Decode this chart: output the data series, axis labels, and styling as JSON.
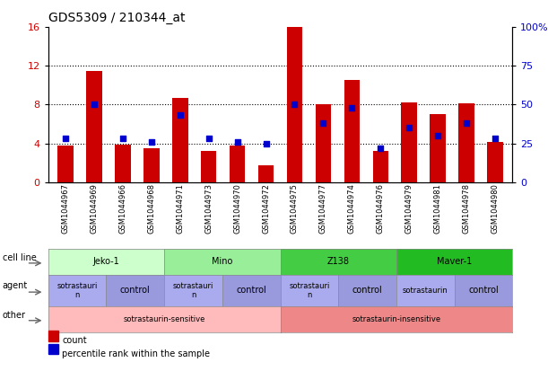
{
  "title": "GDS5309 / 210344_at",
  "samples": [
    "GSM1044967",
    "GSM1044969",
    "GSM1044966",
    "GSM1044968",
    "GSM1044971",
    "GSM1044973",
    "GSM1044970",
    "GSM1044972",
    "GSM1044975",
    "GSM1044977",
    "GSM1044974",
    "GSM1044976",
    "GSM1044979",
    "GSM1044981",
    "GSM1044978",
    "GSM1044980"
  ],
  "count_values": [
    3.8,
    11.4,
    3.9,
    3.5,
    8.7,
    3.2,
    3.8,
    1.8,
    16.0,
    8.0,
    10.5,
    3.2,
    8.2,
    7.0,
    8.1,
    4.2
  ],
  "percentile_values": [
    28,
    50,
    28,
    26,
    43,
    28,
    26,
    25,
    50,
    38,
    48,
    22,
    35,
    30,
    38,
    28
  ],
  "bar_color": "#cc0000",
  "dot_color": "#0000cc",
  "left_ylim": [
    0,
    16
  ],
  "right_ylim": [
    0,
    100
  ],
  "left_yticks": [
    0,
    4,
    8,
    12,
    16
  ],
  "right_yticks": [
    0,
    25,
    50,
    75,
    100
  ],
  "right_yticklabels": [
    "0",
    "25",
    "50",
    "75",
    "100%"
  ],
  "grid_values": [
    4,
    8,
    12
  ],
  "cell_line_groups": [
    {
      "label": "Jeko-1",
      "start": 0,
      "end": 4,
      "color": "#ccffcc"
    },
    {
      "label": "Mino",
      "start": 4,
      "end": 8,
      "color": "#99ee99"
    },
    {
      "label": "Z138",
      "start": 8,
      "end": 12,
      "color": "#44cc44"
    },
    {
      "label": "Maver-1",
      "start": 12,
      "end": 16,
      "color": "#22bb22"
    }
  ],
  "agent_groups": [
    {
      "label": "sotrastauri\nn",
      "start": 0,
      "end": 2,
      "color": "#aaaaee"
    },
    {
      "label": "control",
      "start": 2,
      "end": 4,
      "color": "#9999dd"
    },
    {
      "label": "sotrastauri\nn",
      "start": 4,
      "end": 6,
      "color": "#aaaaee"
    },
    {
      "label": "control",
      "start": 6,
      "end": 8,
      "color": "#9999dd"
    },
    {
      "label": "sotrastauri\nn",
      "start": 8,
      "end": 10,
      "color": "#aaaaee"
    },
    {
      "label": "control",
      "start": 10,
      "end": 12,
      "color": "#9999dd"
    },
    {
      "label": "sotrastaurin",
      "start": 12,
      "end": 14,
      "color": "#aaaaee"
    },
    {
      "label": "control",
      "start": 14,
      "end": 16,
      "color": "#9999dd"
    }
  ],
  "other_groups": [
    {
      "label": "sotrastaurin-sensitive",
      "start": 0,
      "end": 8,
      "color": "#ffbbbb"
    },
    {
      "label": "sotrastaurin-insensitive",
      "start": 8,
      "end": 16,
      "color": "#ee8888"
    }
  ],
  "row_labels": [
    "cell line",
    "agent",
    "other"
  ],
  "legend_items": [
    {
      "color": "#cc0000",
      "label": "count"
    },
    {
      "color": "#0000cc",
      "label": "percentile rank within the sample"
    }
  ],
  "background_color": "#ffffff",
  "tick_label_color_left": "#cc0000",
  "tick_label_color_right": "#0000cc"
}
